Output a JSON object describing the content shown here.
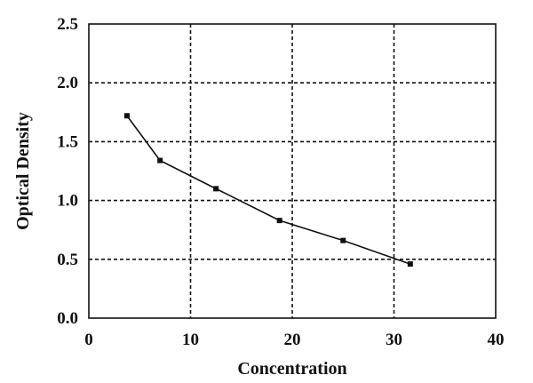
{
  "chart_data": {
    "type": "line",
    "xlabel": "Concentration",
    "ylabel": "Optical Density",
    "xlim": [
      0,
      40
    ],
    "ylim": [
      0.0,
      2.5
    ],
    "x_ticks": [
      "0",
      "10",
      "20",
      "30",
      "40"
    ],
    "y_ticks": [
      "0.0",
      "0.5",
      "1.0",
      "1.5",
      "2.0",
      "2.5"
    ],
    "grid": true,
    "legend": "none",
    "series": [
      {
        "x": [
          3.75,
          7.0,
          12.5,
          18.75,
          25.0,
          31.6
        ],
        "y": [
          1.72,
          1.34,
          1.1,
          0.83,
          0.66,
          0.46
        ],
        "marker": "square",
        "color": "#111111"
      }
    ]
  }
}
